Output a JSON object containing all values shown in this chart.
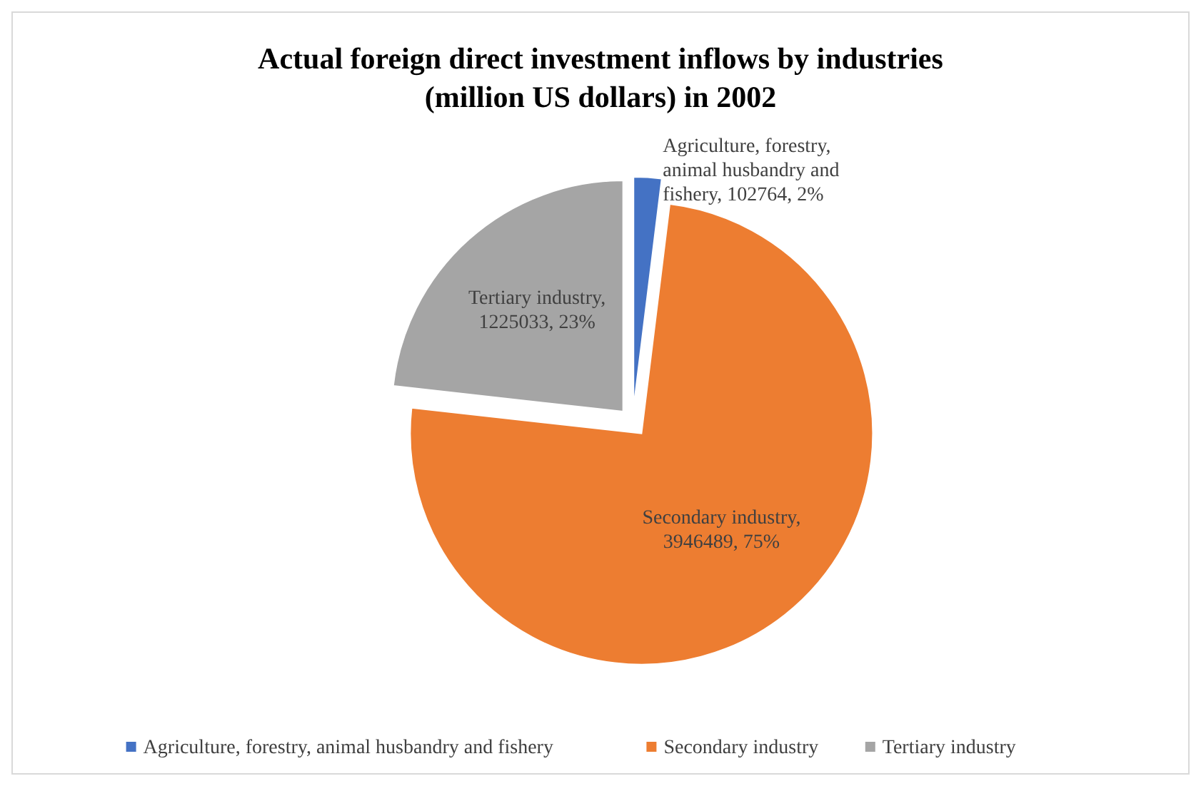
{
  "chart_data": {
    "type": "pie",
    "title": "Actual foreign direct investment inflows by industries (million US dollars) in 2002",
    "categories": [
      "Agriculture, forestry, animal husbandry and fishery",
      "Secondary industry",
      "Tertiary industry"
    ],
    "values": [
      102764,
      3946489,
      1225033
    ],
    "colors": [
      "#4472c4",
      "#ed7d31",
      "#a5a5a5"
    ],
    "value_labels": [
      "Agriculture, forestry, animal husbandry and fishery, 102764, 2%",
      "Secondary industry, 3946489, 75%",
      "Tertiary industry, 1225033, 23%"
    ],
    "legend": "bottom"
  }
}
